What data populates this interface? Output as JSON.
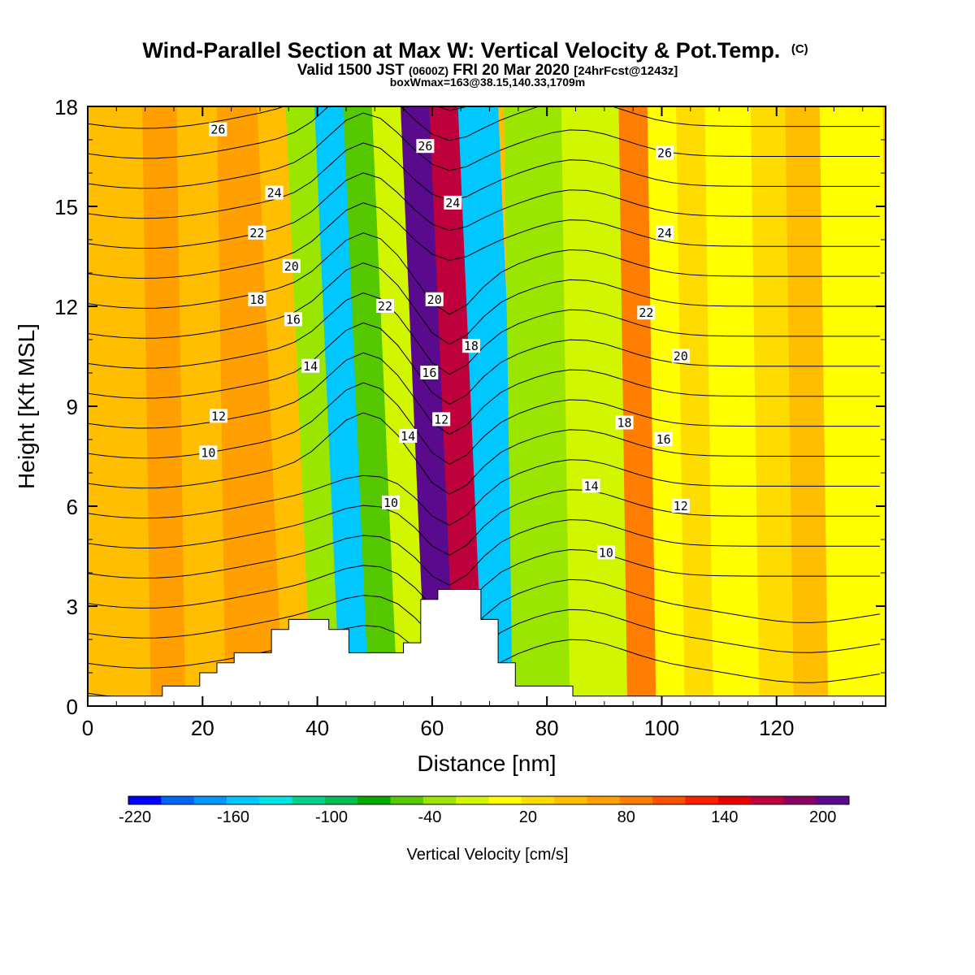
{
  "chart_data": {
    "type": "heatmap",
    "title": "Wind-Parallel Section at Max W: Vertical Velocity & Pot.Temp.",
    "title_suffix": "(C)",
    "subtitle_parts": [
      "Valid 1500 JST",
      "(0600Z)",
      "FRI 20 Mar 2020",
      "[24hrFcst@1243z]"
    ],
    "subtitle2": "boxWmax=163@38.15,140.33,1709m",
    "xlabel": "Distance [nm]",
    "ylabel": "Height [Kft MSL]",
    "xlim": [
      0,
      139
    ],
    "ylim": [
      0,
      18
    ],
    "x_ticks": [
      0,
      20,
      40,
      60,
      80,
      100,
      120
    ],
    "y_ticks": [
      0,
      3,
      6,
      9,
      12,
      15,
      18
    ],
    "colorbar": {
      "label": "Vertical Velocity [cm/s]",
      "tick_labels": [
        "-220",
        "-160",
        "-100",
        "-40",
        "20",
        "80",
        "140",
        "200"
      ],
      "colors": [
        "#0000ff",
        "#0064ff",
        "#0096ff",
        "#00c8ff",
        "#00e6e6",
        "#00d28c",
        "#00be50",
        "#00aa00",
        "#55c800",
        "#9be600",
        "#d2f500",
        "#ffff00",
        "#ffdc00",
        "#ffbe00",
        "#ffa000",
        "#ff7d00",
        "#ff5000",
        "#ff1e00",
        "#e60000",
        "#be003c",
        "#8c0064",
        "#5a0a8c"
      ]
    },
    "vertical_velocity_bands": [
      {
        "x": [
          0,
          12,
          18,
          25,
          30,
          35,
          40,
          45,
          50,
          55,
          60,
          65,
          70,
          75,
          80,
          85,
          90,
          95,
          100,
          105,
          110,
          118,
          124,
          130,
          139
        ],
        "w": [
          30,
          40,
          30,
          50,
          40,
          20,
          -60,
          -180,
          -80,
          -40,
          200,
          140,
          -180,
          -60,
          -50,
          -40,
          -30,
          60,
          -20,
          10,
          -20,
          10,
          20,
          -10,
          30
        ]
      }
    ],
    "theta_contours": [
      10,
      12,
      14,
      16,
      18,
      20,
      22,
      24,
      26
    ],
    "theta_labels": [
      {
        "text": "10",
        "x": 21,
        "y": 7.6
      },
      {
        "text": "12",
        "x": 22.8,
        "y": 8.7
      },
      {
        "text": "14",
        "x": 38.8,
        "y": 10.2
      },
      {
        "text": "16",
        "x": 35.8,
        "y": 11.6
      },
      {
        "text": "18",
        "x": 29.5,
        "y": 12.2
      },
      {
        "text": "20",
        "x": 35.5,
        "y": 13.2
      },
      {
        "text": "22",
        "x": 29.5,
        "y": 14.2
      },
      {
        "text": "24",
        "x": 32.5,
        "y": 15.4
      },
      {
        "text": "26",
        "x": 22.7,
        "y": 17.3
      },
      {
        "text": "10",
        "x": 52.8,
        "y": 6.1
      },
      {
        "text": "14",
        "x": 55.8,
        "y": 8.1
      },
      {
        "text": "12",
        "x": 61.6,
        "y": 8.6
      },
      {
        "text": "16",
        "x": 59.5,
        "y": 10.0
      },
      {
        "text": "22",
        "x": 51.8,
        "y": 12.0
      },
      {
        "text": "20",
        "x": 60.4,
        "y": 12.2
      },
      {
        "text": "24",
        "x": 63.6,
        "y": 15.1
      },
      {
        "text": "26",
        "x": 58.8,
        "y": 16.8
      },
      {
        "text": "18",
        "x": 66.8,
        "y": 10.8
      },
      {
        "text": "10",
        "x": 90.3,
        "y": 4.6
      },
      {
        "text": "14",
        "x": 87.7,
        "y": 6.6
      },
      {
        "text": "12",
        "x": 103.3,
        "y": 6.0
      },
      {
        "text": "16",
        "x": 100.3,
        "y": 8.0
      },
      {
        "text": "18",
        "x": 93.5,
        "y": 8.5
      },
      {
        "text": "20",
        "x": 103.3,
        "y": 10.5
      },
      {
        "text": "22",
        "x": 97.3,
        "y": 11.8
      },
      {
        "text": "24",
        "x": 100.5,
        "y": 14.2
      },
      {
        "text": "26",
        "x": 100.5,
        "y": 16.6
      }
    ],
    "terrain": {
      "x": [
        0,
        13,
        13,
        19.5,
        19.5,
        22.5,
        22.5,
        25.5,
        25.5,
        32,
        32,
        35,
        35,
        42,
        42,
        45.5,
        45.5,
        55,
        55,
        58,
        58,
        61,
        61,
        68.5,
        68.5,
        71.5,
        71.5,
        74.5,
        74.5,
        84.5,
        84.5,
        139
      ],
      "y": [
        0.3,
        0.3,
        0.6,
        0.6,
        1.0,
        1.0,
        1.3,
        1.3,
        1.6,
        1.6,
        2.3,
        2.3,
        2.6,
        2.6,
        2.3,
        2.3,
        1.6,
        1.6,
        1.9,
        1.9,
        3.2,
        3.2,
        3.5,
        3.5,
        2.6,
        2.6,
        1.3,
        1.3,
        0.6,
        0.6,
        0.3,
        0.3
      ]
    },
    "grid": false,
    "legend": "bottom"
  }
}
